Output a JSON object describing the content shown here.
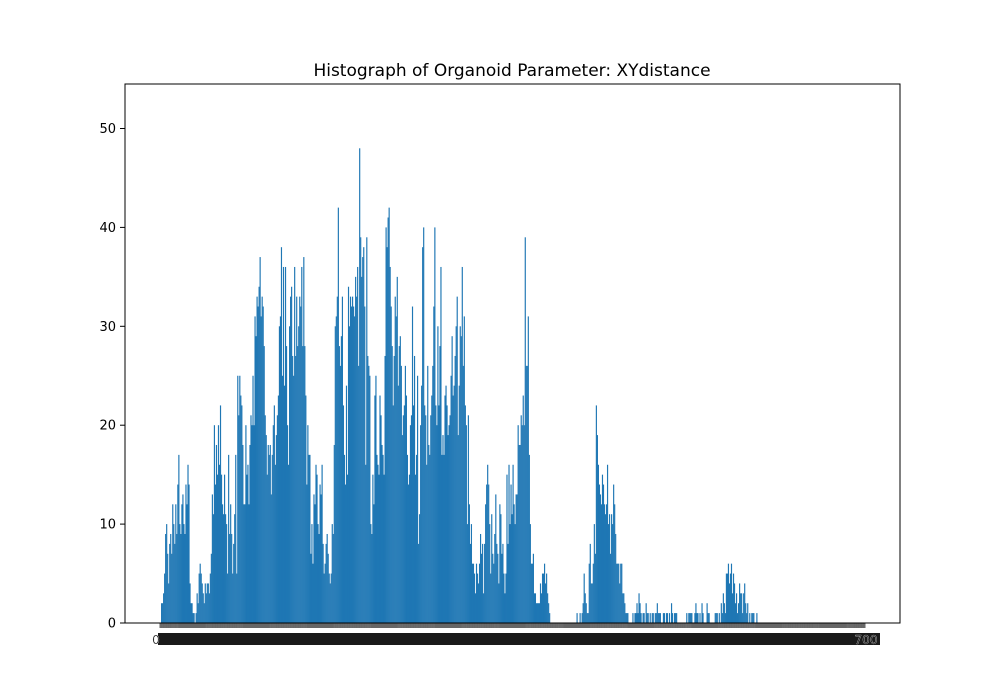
{
  "chart_data": {
    "type": "bar",
    "title": "Histograph of Organoid Parameter: XYdistance",
    "xlabel": "",
    "ylabel": "",
    "ylim": [
      0,
      54.5
    ],
    "yticks": [
      0,
      10,
      20,
      30,
      40,
      50
    ],
    "xtick_first": "0",
    "xtick_last": "700",
    "bar_color": "#1f77b4",
    "values": [
      0,
      2,
      2,
      3,
      5,
      9,
      10,
      7,
      4,
      8,
      9,
      7,
      12,
      10,
      8,
      12,
      9,
      14,
      17,
      10,
      9,
      12,
      13,
      10,
      9,
      14,
      12,
      16,
      14,
      4,
      2,
      2,
      1,
      1,
      0,
      1,
      3,
      2,
      5,
      6,
      5,
      4,
      3,
      2,
      4,
      3,
      4,
      4,
      3,
      5,
      7,
      13,
      11,
      20,
      14,
      18,
      15,
      20,
      16,
      22,
      15,
      12,
      11,
      15,
      11,
      10,
      5,
      17,
      9,
      12,
      9,
      5,
      8,
      11,
      17,
      5,
      25,
      21,
      25,
      23,
      22,
      18,
      12,
      12,
      20,
      15,
      16,
      12,
      18,
      21,
      20,
      25,
      20,
      31,
      29,
      33,
      32,
      34,
      37,
      31,
      33,
      32,
      28,
      21,
      19,
      15,
      18,
      17,
      18,
      13,
      17,
      20,
      22,
      16,
      19,
      21,
      23,
      30,
      31,
      38,
      25,
      36,
      24,
      36,
      28,
      20,
      16,
      30,
      33,
      34,
      27,
      25,
      36,
      27,
      33,
      28,
      30,
      33,
      32,
      36,
      28,
      37,
      28,
      23,
      14,
      20,
      17,
      17,
      7,
      10,
      6,
      13,
      12,
      16,
      15,
      10,
      9,
      14,
      13,
      16,
      8,
      5,
      6,
      8,
      9,
      7,
      5,
      4,
      5,
      10,
      9,
      18,
      30,
      31,
      33,
      42,
      28,
      26,
      29,
      33,
      22,
      17,
      14,
      24,
      15,
      34,
      30,
      33,
      32,
      33,
      32,
      31,
      35,
      33,
      36,
      26,
      48,
      39,
      35,
      37,
      38,
      32,
      16,
      39,
      27,
      26,
      25,
      10,
      9,
      15,
      12,
      23,
      25,
      17,
      16,
      15,
      23,
      21,
      18,
      17,
      15,
      27,
      40,
      38,
      41,
      42,
      36,
      32,
      28,
      22,
      27,
      33,
      31,
      35,
      24,
      28,
      29,
      26,
      19,
      21,
      22,
      26,
      23,
      17,
      14,
      15,
      20,
      21,
      32,
      22,
      27,
      15,
      17,
      25,
      8,
      11,
      20,
      24,
      38,
      40,
      22,
      21,
      16,
      26,
      18,
      17,
      21,
      23,
      26,
      32,
      40,
      22,
      20,
      30,
      22,
      28,
      36,
      17,
      19,
      17,
      23,
      24,
      22,
      19,
      20,
      21,
      25,
      29,
      23,
      24,
      27,
      30,
      33,
      19,
      24,
      30,
      29,
      36,
      26,
      31,
      22,
      20,
      10,
      21,
      12,
      8,
      10,
      6,
      6,
      5,
      3,
      6,
      5,
      4,
      6,
      9,
      7,
      8,
      3,
      8,
      12,
      14,
      16,
      14,
      10,
      5,
      11,
      7,
      6,
      9,
      13,
      8,
      7,
      4,
      12,
      11,
      7,
      8,
      5,
      3,
      5,
      15,
      8,
      16,
      10,
      14,
      11,
      16,
      12,
      10,
      13,
      13,
      20,
      18,
      18,
      21,
      20,
      23,
      20,
      39,
      26,
      26,
      31,
      17,
      10,
      6,
      6,
      7,
      3,
      3,
      2,
      2,
      2,
      2,
      4,
      3,
      5,
      5,
      6,
      4,
      5,
      3,
      2,
      1,
      0,
      0,
      0,
      0,
      0,
      0,
      0,
      0,
      0,
      0,
      0,
      0,
      0,
      0,
      0,
      0,
      0,
      0,
      0,
      0,
      0,
      0,
      0,
      0,
      0,
      0,
      1,
      0,
      0,
      1,
      0,
      1,
      2,
      5,
      3,
      2,
      1,
      1,
      6,
      8,
      4,
      4,
      6,
      10,
      7,
      22,
      19,
      16,
      14,
      13,
      12,
      15,
      14,
      12,
      11,
      12,
      16,
      10,
      11,
      7,
      11,
      10,
      14,
      12,
      9,
      6,
      6,
      6,
      4,
      6,
      6,
      3,
      3,
      2,
      1,
      1,
      1,
      0,
      0,
      0,
      0,
      1,
      0,
      1,
      1,
      2,
      1,
      3,
      2,
      1,
      0,
      1,
      1,
      0,
      2,
      1,
      1,
      0,
      1,
      0,
      1,
      1,
      0,
      1,
      1,
      2,
      1,
      1,
      1,
      0,
      0,
      1,
      1,
      0,
      1,
      1,
      0,
      1,
      0,
      2,
      1,
      0,
      1,
      1,
      1,
      0,
      0,
      0,
      0,
      0,
      0,
      0,
      0,
      0,
      1,
      0,
      1,
      1,
      1,
      1,
      0,
      0,
      1,
      2,
      1,
      1,
      0,
      1,
      0,
      2,
      1,
      0,
      0,
      0,
      2,
      1,
      1,
      0,
      0,
      0,
      0,
      0,
      1,
      1,
      1,
      0,
      1,
      0,
      2,
      1,
      3,
      2,
      1,
      5,
      5,
      6,
      4,
      5,
      6,
      3,
      5,
      4,
      2,
      3,
      1,
      2,
      4,
      3,
      3,
      1,
      3,
      4,
      2,
      1,
      2,
      0,
      1,
      0,
      1,
      1,
      1,
      0,
      0,
      1,
      0,
      0,
      0,
      0,
      0,
      0,
      0,
      0,
      0,
      0,
      0,
      0,
      0,
      0,
      0,
      0,
      0,
      0,
      0,
      0,
      0,
      0,
      0,
      0,
      0,
      0,
      0,
      0,
      0,
      0,
      0,
      0,
      0,
      0,
      0,
      0,
      0,
      0,
      0,
      0,
      0,
      0,
      0,
      0,
      0,
      0,
      0,
      0,
      0,
      0,
      0,
      0,
      0,
      0,
      0,
      0,
      0,
      0,
      0,
      0,
      0,
      0,
      0,
      0,
      0,
      0,
      0,
      0,
      0,
      0,
      0,
      0,
      0,
      0,
      0,
      0,
      0,
      0,
      0,
      0,
      0,
      0,
      0,
      0,
      0,
      0,
      0,
      0,
      0,
      0,
      0,
      0,
      0,
      0,
      0,
      0,
      0,
      0,
      0,
      0,
      0,
      0,
      0,
      0,
      0,
      0
    ]
  }
}
